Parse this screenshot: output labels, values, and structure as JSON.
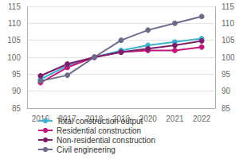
{
  "chart_data": {
    "type": "line",
    "categories": [
      "2016",
      "2017",
      "2018",
      "2019",
      "2020",
      "2021",
      "2022"
    ],
    "series": [
      {
        "name": "Total construction output",
        "color": "#3fb2cf",
        "marker": "circle",
        "values": [
          93.5,
          97.5,
          100,
          102,
          103.5,
          104.5,
          105.5
        ]
      },
      {
        "name": "Residential construction",
        "color": "#c2187a",
        "marker": "circle",
        "values": [
          92.5,
          97,
          100,
          101.5,
          102,
          102,
          103
        ]
      },
      {
        "name": "Non-residential construction",
        "color": "#7b1f6a",
        "marker": "circle",
        "values": [
          94.5,
          98,
          100,
          101.5,
          102.5,
          103.5,
          104.8
        ]
      },
      {
        "name": "Civil engineering",
        "color": "#6b6b8a",
        "marker": "circle",
        "axis": "y2",
        "values": [
          93,
          94.7,
          100,
          105,
          108,
          110,
          112
        ]
      }
    ],
    "ylim": [
      85,
      115
    ],
    "yticks": [
      85,
      90,
      95,
      100,
      105,
      110,
      115
    ],
    "y2lim": [
      85,
      115
    ],
    "y2ticks": [
      85,
      90,
      95,
      100,
      105,
      110,
      115
    ],
    "grid": true,
    "legend": "bottom"
  }
}
